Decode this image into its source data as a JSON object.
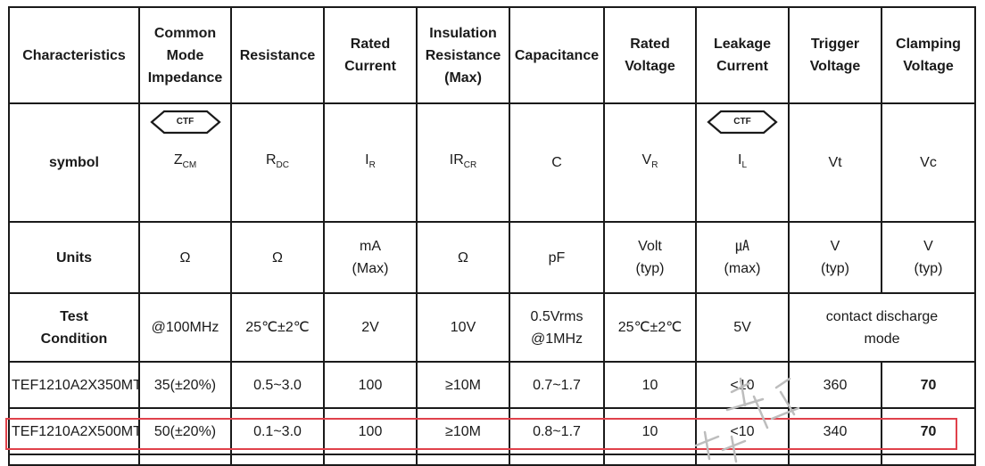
{
  "headers": {
    "characteristics": "Characteristics",
    "common_mode": [
      "Common",
      "Mode",
      "Impedance"
    ],
    "resistance": "Resistance",
    "rated_current": [
      "Rated",
      "Current"
    ],
    "insulation": [
      "Insulation",
      "Resistance",
      "(Max)"
    ],
    "capacitance": "Capacitance",
    "rated_voltage": [
      "Rated",
      "Voltage"
    ],
    "leakage": [
      "Leakage",
      "Current"
    ],
    "trigger": [
      "Trigger",
      "Voltage"
    ],
    "clamping": [
      "Clamping",
      "Voltage"
    ]
  },
  "symbol_row": {
    "label": "symbol",
    "ctf_badge": "CTF",
    "zcm": {
      "base": "Z",
      "sub": "CM"
    },
    "rdc": {
      "base": "R",
      "sub": "DC"
    },
    "ir": {
      "base": "I",
      "sub": "R"
    },
    "ircr": {
      "base": "IR",
      "sub": "CR"
    },
    "c": "C",
    "vr": {
      "base": "V",
      "sub": "R"
    },
    "il": {
      "base": "I",
      "sub": "L"
    },
    "vt": "Vt",
    "vc": "Vc"
  },
  "units_row": {
    "label": "Units",
    "zcm": "Ω",
    "rdc": "Ω",
    "ir": [
      "mA",
      "(Max)"
    ],
    "ircr": "Ω",
    "c": "pF",
    "vr": [
      "Volt",
      "(typ)"
    ],
    "il": [
      "㎂",
      "(max)"
    ],
    "vt": [
      "V",
      "(typ)"
    ],
    "vc": [
      "V",
      "(typ)"
    ]
  },
  "test_row": {
    "label": [
      "Test",
      "Condition"
    ],
    "zcm": "@100MHz",
    "rdc": "25℃±2℃",
    "ir": "2V",
    "ircr": "10V",
    "c": [
      "0.5Vrms",
      "@1MHz"
    ],
    "vr": "25℃±2℃",
    "il": "5V",
    "trigger_clamp": [
      "contact discharge",
      "mode"
    ]
  },
  "products": [
    {
      "part": "TEF1210A2X350MT",
      "zcm": "35(±20%)",
      "rdc": "0.5~3.0",
      "ir": "100",
      "ircr": "≥10M",
      "c": "0.7~1.7",
      "vr": "10",
      "il": "<10",
      "vt": "360",
      "vc": "70"
    },
    {
      "part": "TEF1210A2X500MT",
      "zcm": "50(±20%)",
      "rdc": "0.1~3.0",
      "ir": "100",
      "ircr": "≥10M",
      "c": "0.8~1.7",
      "vr": "10",
      "il": "<10",
      "vt": "340",
      "vc": "70"
    }
  ],
  "highlight_color": "#e0414b"
}
